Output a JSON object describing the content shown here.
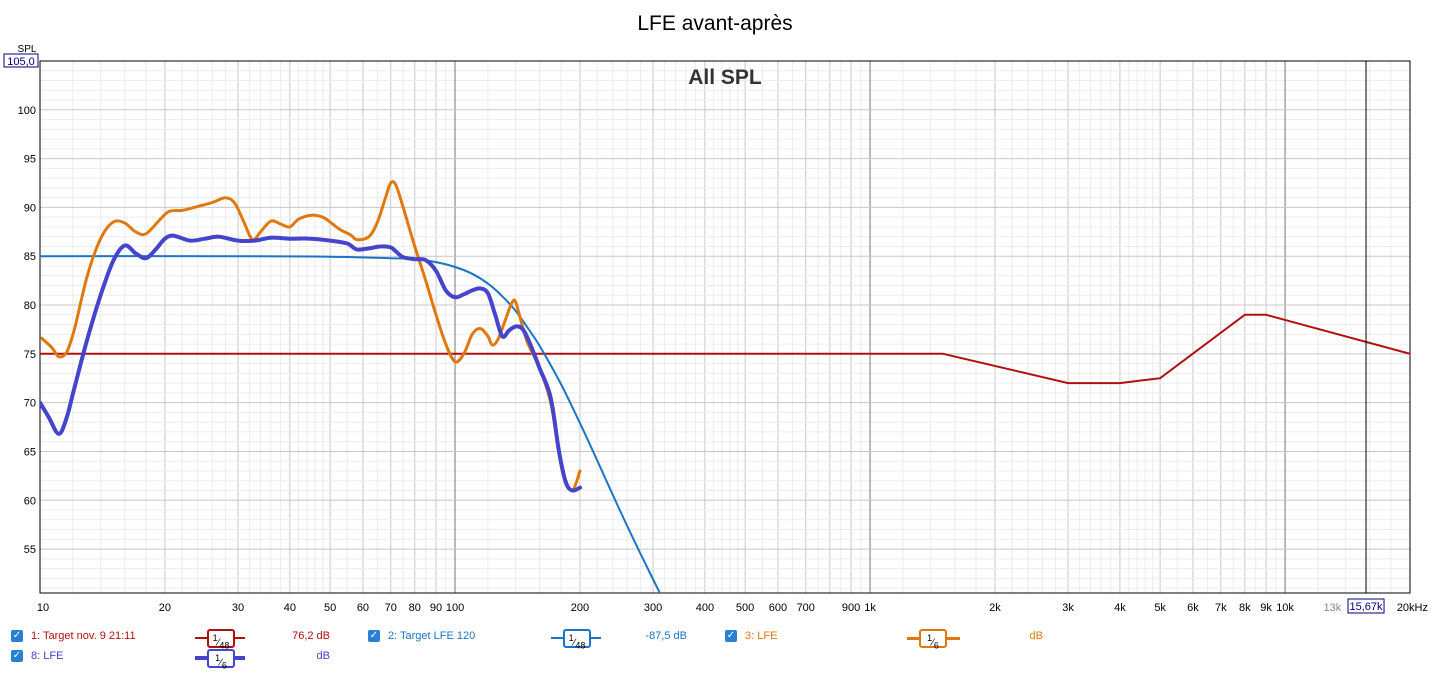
{
  "chart_data": {
    "type": "line",
    "title": "LFE avant-après",
    "graph_label": "All SPL",
    "x_scale": "log",
    "xlim": [
      10,
      20000
    ],
    "ylim": [
      50.5,
      105
    ],
    "ylabel": "SPL",
    "y_top_readout": "105,0",
    "cursor_readout": "15,67k",
    "cursor_x": 15670,
    "x_ticks": [
      {
        "v": 10,
        "label": "10"
      },
      {
        "v": 20,
        "label": "20"
      },
      {
        "v": 30,
        "label": "30"
      },
      {
        "v": 40,
        "label": "40"
      },
      {
        "v": 50,
        "label": "50"
      },
      {
        "v": 60,
        "label": "60"
      },
      {
        "v": 70,
        "label": "70"
      },
      {
        "v": 80,
        "label": "80"
      },
      {
        "v": 90,
        "label": "90"
      },
      {
        "v": 100,
        "label": "100"
      },
      {
        "v": 200,
        "label": "200"
      },
      {
        "v": 300,
        "label": "300"
      },
      {
        "v": 400,
        "label": "400"
      },
      {
        "v": 500,
        "label": "500"
      },
      {
        "v": 600,
        "label": "600"
      },
      {
        "v": 700,
        "label": "700"
      },
      {
        "v": 900,
        "label": "900"
      },
      {
        "v": 1000,
        "label": "1k"
      },
      {
        "v": 2000,
        "label": "2k"
      },
      {
        "v": 3000,
        "label": "3k"
      },
      {
        "v": 4000,
        "label": "4k"
      },
      {
        "v": 5000,
        "label": "5k"
      },
      {
        "v": 6000,
        "label": "6k"
      },
      {
        "v": 7000,
        "label": "7k"
      },
      {
        "v": 8000,
        "label": "8k"
      },
      {
        "v": 9000,
        "label": "9k"
      },
      {
        "v": 10000,
        "label": "10k"
      },
      {
        "v": 13000,
        "label": "13k",
        "muted": true
      },
      {
        "v": 20000,
        "label": "20kHz"
      }
    ],
    "y_ticks": [
      55,
      60,
      65,
      70,
      75,
      80,
      85,
      90,
      95,
      100
    ],
    "series": [
      {
        "name": "1: Target nov. 9 21:11",
        "color": "#b01010",
        "width": 2,
        "points": [
          [
            10,
            75
          ],
          [
            1500,
            75
          ],
          [
            3000,
            72
          ],
          [
            4000,
            72
          ],
          [
            5000,
            72.5
          ],
          [
            8000,
            79
          ],
          [
            9000,
            79
          ],
          [
            20000,
            75
          ]
        ]
      },
      {
        "name": "2: Target LFE 120",
        "color": "#1a74c8",
        "width": 2,
        "points": [
          [
            10,
            85
          ],
          [
            30,
            85
          ],
          [
            50,
            84.95
          ],
          [
            70,
            84.8
          ],
          [
            80,
            84.7
          ],
          [
            90,
            84.4
          ],
          [
            100,
            83.9
          ],
          [
            110,
            83.2
          ],
          [
            120,
            82.2
          ],
          [
            130,
            80.9
          ],
          [
            140,
            79.4
          ],
          [
            150,
            77.6
          ],
          [
            160,
            75.8
          ],
          [
            180,
            71.9
          ],
          [
            200,
            67.9
          ],
          [
            220,
            64.1
          ],
          [
            250,
            58.9
          ],
          [
            280,
            54.5
          ],
          [
            320,
            49.5
          ]
        ]
      },
      {
        "name": "3: LFE",
        "color": "#e0780e",
        "width": 3,
        "points": [
          [
            10.1,
            76.6
          ],
          [
            10.7,
            75.6
          ],
          [
            11.1,
            74.7
          ],
          [
            11.6,
            75.2
          ],
          [
            12.1,
            77.5
          ],
          [
            13,
            83
          ],
          [
            14,
            86.8
          ],
          [
            15,
            88.5
          ],
          [
            16,
            88.4
          ],
          [
            17,
            87.5
          ],
          [
            18,
            87.3
          ],
          [
            19.5,
            88.8
          ],
          [
            20.5,
            89.6
          ],
          [
            22,
            89.7
          ],
          [
            24,
            90.1
          ],
          [
            26,
            90.5
          ],
          [
            28,
            91
          ],
          [
            29.5,
            90.4
          ],
          [
            31,
            88.5
          ],
          [
            32.5,
            86.7
          ],
          [
            34,
            87.5
          ],
          [
            36,
            88.6
          ],
          [
            38,
            88.3
          ],
          [
            40,
            88
          ],
          [
            42,
            88.8
          ],
          [
            45,
            89.2
          ],
          [
            48,
            89
          ],
          [
            50,
            88.5
          ],
          [
            53,
            87.7
          ],
          [
            56,
            87.2
          ],
          [
            58,
            86.7
          ],
          [
            62,
            87
          ],
          [
            65,
            88.5
          ],
          [
            68,
            91
          ],
          [
            70,
            92.5
          ],
          [
            72,
            92.3
          ],
          [
            75,
            90
          ],
          [
            80,
            86
          ],
          [
            85,
            82.5
          ],
          [
            90,
            79
          ],
          [
            95,
            76
          ],
          [
            100,
            74.2
          ],
          [
            105,
            75
          ],
          [
            110,
            77
          ],
          [
            115,
            77.6
          ],
          [
            120,
            76.8
          ],
          [
            123,
            75.9
          ],
          [
            127,
            76.5
          ],
          [
            132,
            78.4
          ],
          [
            137,
            80.2
          ],
          [
            140,
            80.3
          ],
          [
            145,
            78
          ],
          [
            150,
            76
          ],
          [
            160,
            73.5
          ],
          [
            170,
            70
          ],
          [
            178,
            65
          ],
          [
            185,
            62
          ],
          [
            192,
            61
          ],
          [
            200,
            63
          ]
        ]
      },
      {
        "name": "8: LFE",
        "color": "#4444cc",
        "width": 4,
        "points": [
          [
            10,
            70
          ],
          [
            10.5,
            68.5
          ],
          [
            11.1,
            66.8
          ],
          [
            11.6,
            68.5
          ],
          [
            12.1,
            71.5
          ],
          [
            13,
            76.5
          ],
          [
            14,
            81
          ],
          [
            15,
            84.5
          ],
          [
            16,
            86.1
          ],
          [
            17,
            85.3
          ],
          [
            18,
            84.8
          ],
          [
            19,
            85.7
          ],
          [
            20,
            86.8
          ],
          [
            21,
            87.1
          ],
          [
            23,
            86.6
          ],
          [
            25,
            86.8
          ],
          [
            27,
            87
          ],
          [
            30,
            86.6
          ],
          [
            33,
            86.6
          ],
          [
            36,
            86.9
          ],
          [
            40,
            86.8
          ],
          [
            45,
            86.8
          ],
          [
            50,
            86.6
          ],
          [
            55,
            86.3
          ],
          [
            58,
            85.7
          ],
          [
            62,
            85.8
          ],
          [
            66,
            86
          ],
          [
            70,
            85.9
          ],
          [
            72,
            85.5
          ],
          [
            75,
            84.9
          ],
          [
            80,
            84.7
          ],
          [
            85,
            84.6
          ],
          [
            90,
            83.5
          ],
          [
            95,
            81.5
          ],
          [
            100,
            80.8
          ],
          [
            105,
            81.1
          ],
          [
            110,
            81.5
          ],
          [
            115,
            81.7
          ],
          [
            120,
            81.2
          ],
          [
            125,
            79
          ],
          [
            130,
            76.8
          ],
          [
            135,
            77.4
          ],
          [
            140,
            77.8
          ],
          [
            145,
            77.6
          ],
          [
            150,
            76.5
          ],
          [
            160,
            73.5
          ],
          [
            170,
            70.5
          ],
          [
            178,
            65
          ],
          [
            185,
            61.8
          ],
          [
            192,
            61
          ],
          [
            200,
            61.3
          ]
        ]
      }
    ]
  },
  "legend": [
    {
      "label": "1: Target nov. 9 21:11",
      "smoothing": "1/48",
      "value": "76,2 dB",
      "color": "#b01010"
    },
    {
      "label": "2: Target LFE 120",
      "smoothing": "1/48",
      "value": "-87,5 dB",
      "color": "#1a74c8"
    },
    {
      "label": "3: LFE",
      "smoothing": "1/6",
      "value": "dB",
      "color": "#e0780e"
    },
    {
      "label": "8: LFE",
      "smoothing": "1/6",
      "value": "dB",
      "color": "#4444cc"
    }
  ]
}
